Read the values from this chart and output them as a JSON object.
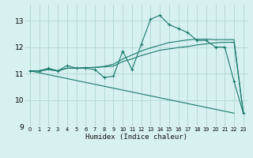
{
  "xlabel": "Humidex (Indice chaleur)",
  "bg_color": "#d7f0f0",
  "grid_color": "#afd8d0",
  "line_color": "#1a7a6e",
  "xlim": [
    -0.5,
    23.5
  ],
  "ylim": [
    9.0,
    13.6
  ],
  "yticks": [
    9,
    10,
    11,
    12,
    13
  ],
  "xticks": [
    0,
    1,
    2,
    3,
    4,
    5,
    6,
    7,
    8,
    9,
    10,
    11,
    12,
    13,
    14,
    15,
    16,
    17,
    18,
    19,
    20,
    21,
    22,
    23
  ],
  "series": [
    {
      "x": [
        0,
        1,
        2,
        3,
        4,
        5,
        6,
        7,
        8,
        9,
        10,
        11,
        12,
        13,
        14,
        15,
        16,
        17,
        18,
        19,
        20,
        21,
        22,
        23
      ],
      "y": [
        11.1,
        11.1,
        11.2,
        11.1,
        11.3,
        11.2,
        11.2,
        11.15,
        10.85,
        10.9,
        11.85,
        11.15,
        12.1,
        13.05,
        13.2,
        12.85,
        12.7,
        12.55,
        12.25,
        12.25,
        12.0,
        12.0,
        10.7,
        9.5
      ],
      "marker": "+"
    },
    {
      "x": [
        0,
        1,
        2,
        3,
        4,
        5,
        6,
        7,
        8,
        9,
        10,
        11,
        12,
        13,
        14,
        15,
        16,
        17,
        18,
        19,
        20,
        21,
        22,
        23
      ],
      "y": [
        11.1,
        11.1,
        11.15,
        11.1,
        11.2,
        11.2,
        11.22,
        11.23,
        11.25,
        11.28,
        11.45,
        11.55,
        11.68,
        11.78,
        11.88,
        11.93,
        11.98,
        12.02,
        12.08,
        12.12,
        12.16,
        12.18,
        12.18,
        9.5
      ],
      "marker": null
    },
    {
      "x": [
        0,
        1,
        2,
        3,
        4,
        5,
        6,
        7,
        8,
        9,
        10,
        11,
        12,
        13,
        14,
        15,
        16,
        17,
        18,
        19,
        20,
        21,
        22,
        23
      ],
      "y": [
        11.1,
        11.1,
        11.15,
        11.1,
        11.2,
        11.2,
        11.22,
        11.23,
        11.27,
        11.35,
        11.55,
        11.7,
        11.85,
        11.97,
        12.07,
        12.17,
        12.22,
        12.27,
        12.3,
        12.3,
        12.28,
        12.28,
        12.28,
        9.5
      ],
      "marker": null
    },
    {
      "x": [
        0,
        22
      ],
      "y": [
        11.1,
        9.5
      ],
      "marker": null
    }
  ]
}
